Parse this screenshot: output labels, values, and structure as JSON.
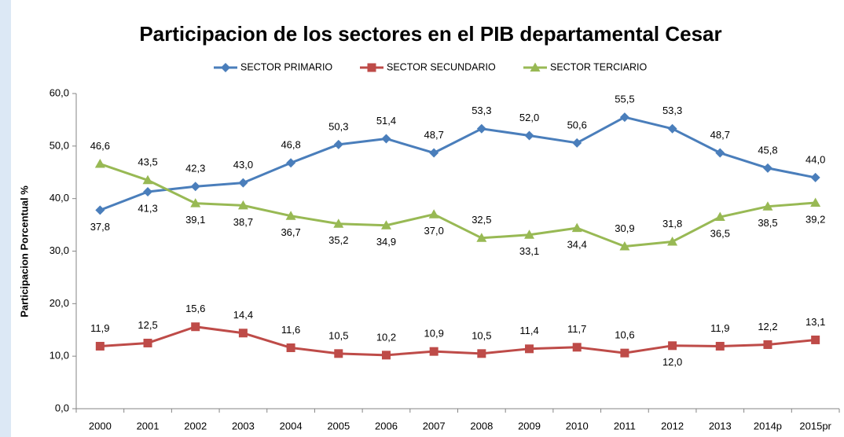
{
  "chart_data": {
    "type": "line",
    "title": "Participacion de los sectores en el PIB departamental Cesar",
    "y_label": "Participacion Porcentual %",
    "categories": [
      "2000",
      "2001",
      "2002",
      "2003",
      "2004",
      "2005",
      "2006",
      "2007",
      "2008",
      "2009",
      "2010",
      "2011",
      "2012",
      "2013",
      "2014p",
      "2015pr"
    ],
    "series": [
      {
        "name": "SECTOR PRIMARIO",
        "color": "#4a7ebb",
        "marker": "diamond",
        "values": [
          37.8,
          41.3,
          42.3,
          43.0,
          46.8,
          50.3,
          51.4,
          48.7,
          53.3,
          52.0,
          50.6,
          55.5,
          53.3,
          48.7,
          45.8,
          44.0
        ],
        "value_labels": [
          "37,8",
          "41,3",
          "42,3",
          "43,0",
          "46,8",
          "50,3",
          "51,4",
          "48,7",
          "53,3",
          "52,0",
          "50,6",
          "55,5",
          "53,3",
          "48,7",
          "45,8",
          "44,0"
        ]
      },
      {
        "name": "SECTOR SECUNDARIO",
        "color": "#be4b48",
        "marker": "square",
        "values": [
          11.9,
          12.5,
          15.6,
          14.4,
          11.6,
          10.5,
          10.2,
          10.9,
          10.5,
          11.4,
          11.7,
          10.6,
          12.0,
          11.9,
          12.2,
          13.1
        ],
        "value_labels": [
          "11,9",
          "12,5",
          "15,6",
          "14,4",
          "11,6",
          "10,5",
          "10,2",
          "10,9",
          "10,5",
          "11,4",
          "11,7",
          "10,6",
          "12,0",
          "11,9",
          "12,2",
          "13,1"
        ]
      },
      {
        "name": "SECTOR TERCIARIO",
        "color": "#98b954",
        "marker": "triangle",
        "values": [
          46.6,
          43.5,
          39.1,
          38.7,
          36.7,
          35.2,
          34.9,
          37.0,
          32.5,
          33.1,
          34.4,
          30.9,
          31.8,
          36.5,
          38.5,
          39.2
        ],
        "value_labels": [
          "46,6",
          "43,5",
          "39,1",
          "38,7",
          "36,7",
          "35,2",
          "34,9",
          "37,0",
          "32,5",
          "33,1",
          "34,4",
          "30,9",
          "31,8",
          "36,5",
          "38,5",
          "39,2"
        ]
      }
    ],
    "ylim": [
      0,
      60
    ],
    "yticks": [
      {
        "value": 0,
        "label": "0,0"
      },
      {
        "value": 10,
        "label": "10,0"
      },
      {
        "value": 20,
        "label": "20,0"
      },
      {
        "value": 30,
        "label": "30,0"
      },
      {
        "value": 40,
        "label": "40,0"
      },
      {
        "value": 50,
        "label": "50,0"
      },
      {
        "value": 60,
        "label": "60,0"
      }
    ],
    "grid": false,
    "legend": "top"
  }
}
